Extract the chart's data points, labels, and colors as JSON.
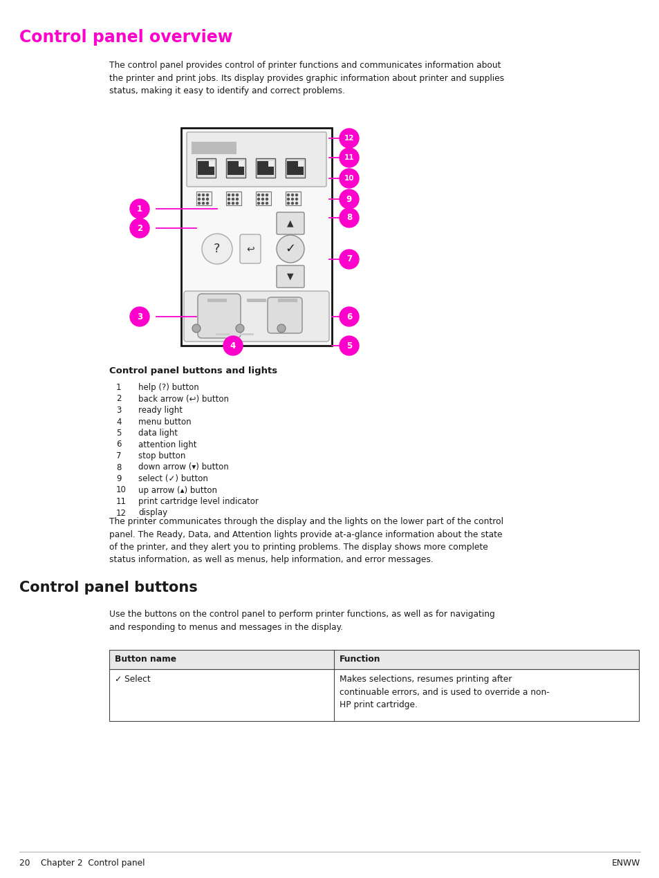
{
  "title": "Control panel overview",
  "title_color": "#FF00CC",
  "title_fontsize": 17,
  "body_color": "#1A1A1A",
  "bg_color": "#FFFFFF",
  "intro_text": "The control panel provides control of printer functions and communicates information about\nthe printer and print jobs. Its display provides graphic information about printer and supplies\nstatus, making it easy to identify and correct problems.",
  "section2_title": "Control panel buttons",
  "section2_title_fontsize": 15,
  "section2_intro": "Use the buttons on the control panel to perform printer functions, as well as for navigating\nand responding to menus and messages in the display.",
  "callout_label": "Control panel buttons and lights",
  "callout_items": [
    [
      "1",
      "help (?) button"
    ],
    [
      "2",
      "back arrow (↩) button"
    ],
    [
      "3",
      "ready light"
    ],
    [
      "4",
      "menu button"
    ],
    [
      "5",
      "data light"
    ],
    [
      "6",
      "attention light"
    ],
    [
      "7",
      "stop button"
    ],
    [
      "8",
      "down arrow (▾) button"
    ],
    [
      "9",
      "select (✓) button"
    ],
    [
      "10",
      "up arrow (▴) button"
    ],
    [
      "11",
      "print cartridge level indicator"
    ],
    [
      "12",
      "display"
    ]
  ],
  "bottom_paragraph": "The printer communicates through the display and the lights on the lower part of the control\npanel. The Ready, Data, and Attention lights provide at-a-glance information about the state\nof the printer, and they alert you to printing problems. The display shows more complete\nstatus information, as well as menus, help information, and error messages.",
  "table_header": [
    "Button name",
    "Function"
  ],
  "table_rows": [
    [
      "✓ Select",
      "Makes selections, resumes printing after\ncontinuable errors, and is used to override a non-\nHP print cartridge."
    ]
  ],
  "footer_left": "20    Chapter 2  Control panel",
  "footer_right": "ENWW",
  "accent_color": "#FF00CC",
  "panel_color": "#F8F8F8",
  "panel_border": "#111111",
  "display_bg": "#D8D8D8",
  "button_light": "#E0E0E0",
  "button_border": "#888888",
  "cartridge_dark": "#333333",
  "light_gray": "#AAAAAA"
}
